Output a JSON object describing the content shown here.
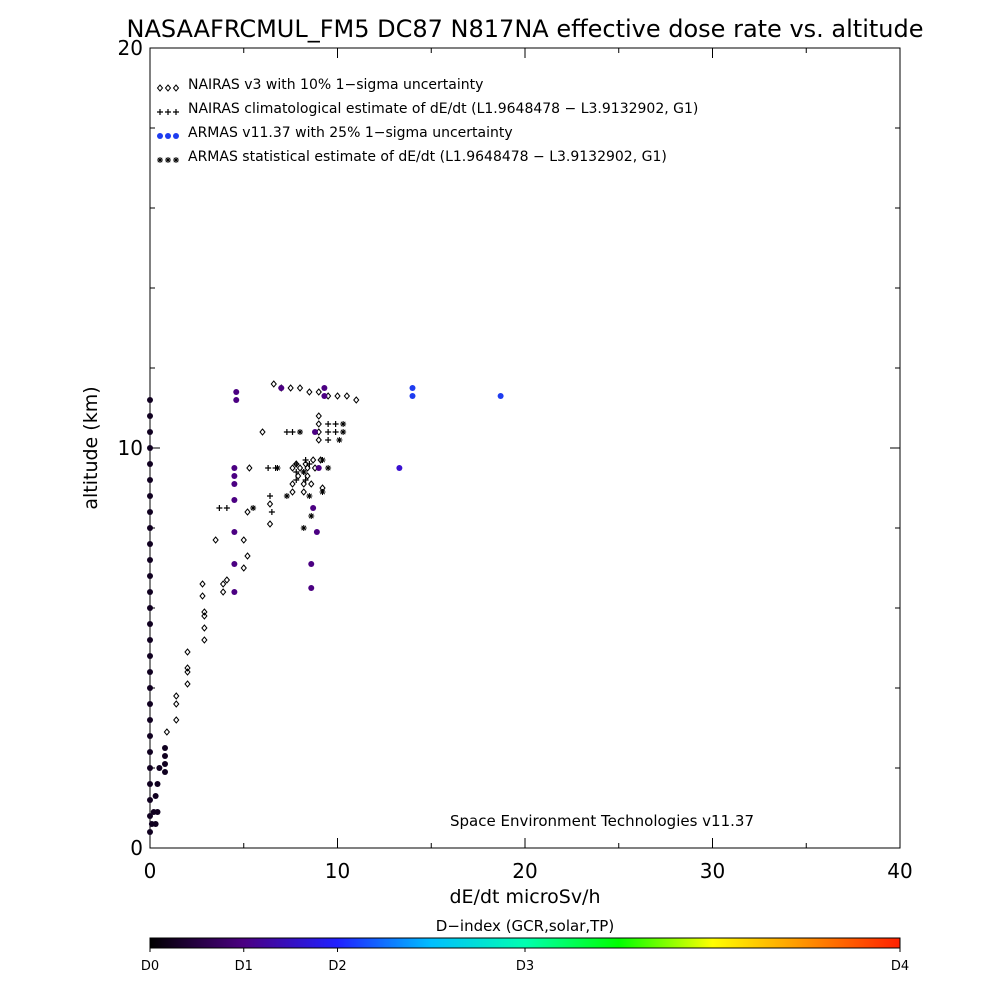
{
  "chart_data": {
    "type": "scatter",
    "title": "NASAAFRCMUL_FM5 DC87 N817NA effective dose rate vs. altitude",
    "xlabel": "dE/dt microSv/h",
    "ylabel": "altitude (km)",
    "xlim": [
      0,
      40
    ],
    "ylim": [
      0,
      20
    ],
    "x_ticks": [
      "0",
      "10",
      "20",
      "30",
      "40"
    ],
    "y_ticks": [
      "0",
      "10",
      "20"
    ],
    "grid": false,
    "legend_position": "top-left",
    "credit": "Space Environment Technologies v11.37",
    "colorbar": {
      "title": "D−index (GCR,solar,TP)",
      "labels": [
        {
          "text": "D0",
          "value": 0
        },
        {
          "text": "D1",
          "value": 0.125
        },
        {
          "text": "D2",
          "value": 0.25
        },
        {
          "text": "D3",
          "value": 0.5
        },
        {
          "text": "D4",
          "value": 1.0
        }
      ],
      "colors": [
        "#000000",
        "#4b0082",
        "#2020ff",
        "#00bfff",
        "#00ffb0",
        "#00ff00",
        "#ffff00",
        "#ff9000",
        "#ff2000"
      ]
    },
    "series": [
      {
        "name": "NAIRAS v3 with 10% 1−sigma uncertainty",
        "marker": "diamond",
        "color": "#000000",
        "points": [
          [
            0.9,
            2.9
          ],
          [
            1.4,
            3.2
          ],
          [
            1.4,
            3.6
          ],
          [
            1.4,
            3.8
          ],
          [
            2.0,
            4.1
          ],
          [
            2.0,
            4.4
          ],
          [
            2.0,
            4.5
          ],
          [
            2.0,
            4.9
          ],
          [
            2.9,
            5.2
          ],
          [
            2.9,
            5.5
          ],
          [
            2.9,
            5.8
          ],
          [
            2.9,
            5.9
          ],
          [
            2.8,
            6.3
          ],
          [
            2.8,
            6.6
          ],
          [
            3.9,
            6.4
          ],
          [
            3.9,
            6.6
          ],
          [
            4.1,
            6.7
          ],
          [
            3.5,
            7.7
          ],
          [
            5.0,
            7.0
          ],
          [
            5.0,
            7.7
          ],
          [
            5.2,
            7.3
          ],
          [
            5.2,
            8.4
          ],
          [
            5.3,
            9.5
          ],
          [
            6.4,
            8.1
          ],
          [
            6.4,
            8.6
          ],
          [
            6.0,
            10.4
          ],
          [
            6.6,
            11.6
          ],
          [
            7.0,
            11.5
          ],
          [
            7.5,
            11.5
          ],
          [
            8.0,
            11.5
          ],
          [
            8.5,
            11.4
          ],
          [
            9.0,
            11.4
          ],
          [
            9.5,
            11.3
          ],
          [
            10.0,
            11.3
          ],
          [
            10.5,
            11.3
          ],
          [
            11.0,
            11.2
          ],
          [
            7.6,
            9.5
          ],
          [
            8.0,
            9.5
          ],
          [
            8.4,
            9.5
          ],
          [
            8.8,
            9.5
          ],
          [
            7.8,
            9.6
          ],
          [
            8.3,
            9.6
          ],
          [
            7.9,
            9.3
          ],
          [
            8.4,
            9.3
          ],
          [
            7.6,
            9.1
          ],
          [
            8.2,
            9.1
          ],
          [
            7.6,
            8.9
          ],
          [
            8.2,
            8.9
          ],
          [
            9.0,
            10.2
          ],
          [
            9.0,
            10.4
          ],
          [
            9.0,
            10.6
          ],
          [
            9.0,
            10.8
          ],
          [
            8.7,
            9.7
          ],
          [
            9.1,
            9.7
          ],
          [
            8.6,
            9.1
          ],
          [
            9.2,
            9.0
          ]
        ]
      },
      {
        "name": "NAIRAS climatological estimate of dE/dt (L1.9648478 − L3.9132902, G1)",
        "marker": "plus",
        "color": "#000000",
        "points": [
          [
            3.7,
            8.5
          ],
          [
            4.1,
            8.5
          ],
          [
            6.4,
            8.8
          ],
          [
            6.5,
            8.4
          ],
          [
            6.3,
            9.5
          ],
          [
            6.7,
            9.5
          ],
          [
            7.3,
            10.4
          ],
          [
            7.6,
            10.4
          ],
          [
            7.8,
            9.4
          ],
          [
            8.2,
            9.4
          ],
          [
            7.8,
            9.2
          ],
          [
            8.3,
            9.2
          ],
          [
            7.8,
            9.6
          ],
          [
            8.5,
            9.6
          ],
          [
            8.3,
            9.7
          ],
          [
            9.5,
            10.2
          ],
          [
            9.9,
            10.4
          ],
          [
            9.5,
            10.6
          ],
          [
            9.9,
            10.6
          ],
          [
            9.5,
            10.4
          ]
        ]
      },
      {
        "name": "ARMAS v11.37 with 25% 1−sigma uncertainty",
        "marker": "dot",
        "color": "#2040e0",
        "points": [
          [
            0,
            0.4
          ],
          [
            0,
            0.8
          ],
          [
            0,
            1.2
          ],
          [
            0,
            1.6
          ],
          [
            0,
            2.0
          ],
          [
            0,
            2.4
          ],
          [
            0,
            2.8
          ],
          [
            0,
            3.2
          ],
          [
            0,
            3.6
          ],
          [
            0,
            4.0
          ],
          [
            0,
            4.4
          ],
          [
            0,
            4.8
          ],
          [
            0,
            5.2
          ],
          [
            0,
            5.6
          ],
          [
            0,
            6.0
          ],
          [
            0,
            6.4
          ],
          [
            0,
            6.8
          ],
          [
            0,
            7.2
          ],
          [
            0,
            7.6
          ],
          [
            0,
            8.0
          ],
          [
            0,
            8.4
          ],
          [
            0,
            8.8
          ],
          [
            0,
            9.2
          ],
          [
            0,
            9.6
          ],
          [
            0,
            10.0
          ],
          [
            0,
            10.4
          ],
          [
            0,
            10.8
          ],
          [
            0,
            11.2
          ],
          [
            0.1,
            0.6
          ],
          [
            0.2,
            0.9
          ],
          [
            0.3,
            1.3
          ],
          [
            0.4,
            1.6
          ],
          [
            0.5,
            2.0
          ],
          [
            0.4,
            0.9
          ],
          [
            0.3,
            0.6
          ],
          [
            0.8,
            1.9
          ],
          [
            0.8,
            2.1
          ],
          [
            0.8,
            2.3
          ],
          [
            0.8,
            2.5
          ],
          [
            4.5,
            9.5
          ],
          [
            4.5,
            9.3
          ],
          [
            4.5,
            8.7
          ],
          [
            4.5,
            7.9
          ],
          [
            4.5,
            7.1
          ],
          [
            4.5,
            6.4
          ],
          [
            4.5,
            9.1
          ],
          [
            4.6,
            11.4
          ],
          [
            4.6,
            11.2
          ],
          [
            7.0,
            11.5
          ],
          [
            8.7,
            8.5
          ],
          [
            8.9,
            7.9
          ],
          [
            8.6,
            7.1
          ],
          [
            8.6,
            6.5
          ],
          [
            8.8,
            10.4
          ],
          [
            9.0,
            9.5
          ],
          [
            9.3,
            11.5
          ],
          [
            9.3,
            11.3
          ],
          [
            13.3,
            9.5
          ],
          [
            14.0,
            11.5
          ],
          [
            14.0,
            11.3
          ],
          [
            18.7,
            11.3
          ]
        ]
      },
      {
        "name": "ARMAS statistical estimate of dE/dt (L1.9648478 − L3.9132902, G1)",
        "marker": "asterisk",
        "color": "#000000",
        "points": [
          [
            5.5,
            8.5
          ],
          [
            6.8,
            9.5
          ],
          [
            7.3,
            8.8
          ],
          [
            8.0,
            10.4
          ],
          [
            8.2,
            9.4
          ],
          [
            8.5,
            8.8
          ],
          [
            8.2,
            8.0
          ],
          [
            9.2,
            9.7
          ],
          [
            9.2,
            8.9
          ],
          [
            10.1,
            10.2
          ],
          [
            10.3,
            10.4
          ],
          [
            10.3,
            10.6
          ],
          [
            9.5,
            9.5
          ],
          [
            8.6,
            8.3
          ]
        ]
      }
    ]
  }
}
